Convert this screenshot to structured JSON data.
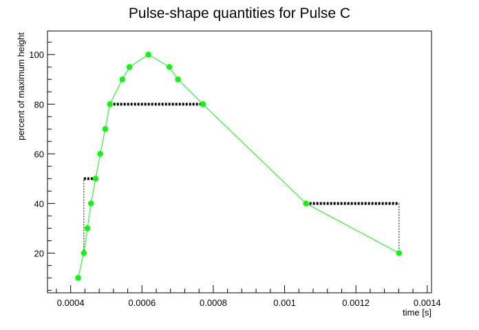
{
  "colors": {
    "series": "#00ff00",
    "annotation": "#000000",
    "background": "#ffffff",
    "frame": "#000000"
  },
  "chart_data": {
    "type": "scatter",
    "title": "Pulse-shape quantities for Pulse C",
    "xlabel": "time [s]",
    "ylabel": "percent of maximum height",
    "xlim": [
      0.000335,
      0.001412
    ],
    "ylim": [
      4,
      109.5
    ],
    "grid": false,
    "legend": "none",
    "x_ticks": [
      {
        "value": 0.0004,
        "label": "0.0004"
      },
      {
        "value": 0.0006,
        "label": "0.0006"
      },
      {
        "value": 0.0008,
        "label": "0.0008"
      },
      {
        "value": 0.001,
        "label": "0.001"
      },
      {
        "value": 0.0012,
        "label": "0.0012"
      },
      {
        "value": 0.0014,
        "label": "0.0014"
      }
    ],
    "y_ticks": [
      {
        "value": 20,
        "label": "20"
      },
      {
        "value": 40,
        "label": "40"
      },
      {
        "value": 60,
        "label": "60"
      },
      {
        "value": 80,
        "label": "80"
      },
      {
        "value": 100,
        "label": "100"
      }
    ],
    "series": [
      {
        "marker": "circle",
        "line": "solid",
        "points": [
          {
            "x": 0.000421,
            "y": 10
          },
          {
            "x": 0.000437,
            "y": 20
          },
          {
            "x": 0.000447,
            "y": 30
          },
          {
            "x": 0.000457,
            "y": 40
          },
          {
            "x": 0.00047,
            "y": 50
          },
          {
            "x": 0.000483,
            "y": 60
          },
          {
            "x": 0.000497,
            "y": 70
          },
          {
            "x": 0.00051,
            "y": 80
          },
          {
            "x": 0.000545,
            "y": 90
          },
          {
            "x": 0.000565,
            "y": 95
          },
          {
            "x": 0.000618,
            "y": 100
          },
          {
            "x": 0.000677,
            "y": 95
          },
          {
            "x": 0.000701,
            "y": 90
          },
          {
            "x": 0.000771,
            "y": 80
          },
          {
            "x": 0.00106,
            "y": 40
          },
          {
            "x": 0.001321,
            "y": 20
          }
        ]
      }
    ],
    "annotations": [
      {
        "name": "rise-width-50",
        "style": "dotted-thick",
        "from": {
          "x": 0.000437,
          "y": 50
        },
        "to": {
          "x": 0.00047,
          "y": 50
        }
      },
      {
        "name": "rise-time-bar",
        "style": "dotted-thin",
        "from": {
          "x": 0.000437,
          "y": 20
        },
        "to": {
          "x": 0.000437,
          "y": 50
        }
      },
      {
        "name": "width-80",
        "style": "dotted-thick",
        "from": {
          "x": 0.00051,
          "y": 80
        },
        "to": {
          "x": 0.000771,
          "y": 80
        }
      },
      {
        "name": "decay-width-40",
        "style": "dotted-thick",
        "from": {
          "x": 0.00106,
          "y": 40
        },
        "to": {
          "x": 0.001321,
          "y": 40
        }
      },
      {
        "name": "decay-time-bar",
        "style": "dotted-thin",
        "from": {
          "x": 0.001321,
          "y": 40
        },
        "to": {
          "x": 0.001321,
          "y": 20
        }
      }
    ]
  }
}
